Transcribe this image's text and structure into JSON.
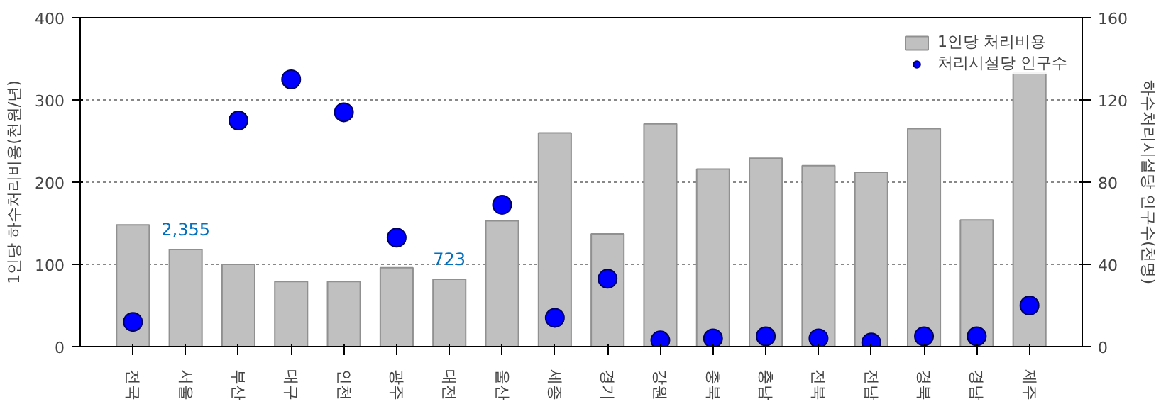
{
  "chart_data": {
    "type": "bar",
    "categories": [
      "전국",
      "서울",
      "부산",
      "대구",
      "인천",
      "광주",
      "대전",
      "울산",
      "세종",
      "경기",
      "강원",
      "충북",
      "충남",
      "전북",
      "전남",
      "경북",
      "경남",
      "제주"
    ],
    "ylabel": "1인당 하수처리비용(천원/년)",
    "y2label": "하수처리시설당 인구수(천명)",
    "ylim": [
      0,
      400
    ],
    "yticks": [
      0,
      100,
      200,
      300,
      400
    ],
    "y2lim": [
      0,
      160
    ],
    "y2ticks": [
      0,
      40,
      80,
      120,
      160
    ],
    "grid": "y",
    "legend": "top right",
    "series": [
      {
        "name": "1인당 처리비용",
        "color": "#c0c0c0",
        "values": [
          148,
          118,
          100,
          79,
          79,
          96,
          82,
          153,
          260,
          137,
          271,
          216,
          229,
          220,
          212,
          265,
          154,
          333
        ]
      },
      {
        "name": "처리시설당 인구수",
        "type": "scatter",
        "axis": "y2",
        "marker": "circle",
        "color": "#0000ff",
        "values": [
          12,
          null,
          110,
          130,
          114,
          53,
          null,
          69,
          14,
          33,
          3,
          4,
          5,
          4,
          2,
          5,
          5,
          20
        ]
      }
    ],
    "annotations": [
      "2,355",
      "723"
    ]
  }
}
